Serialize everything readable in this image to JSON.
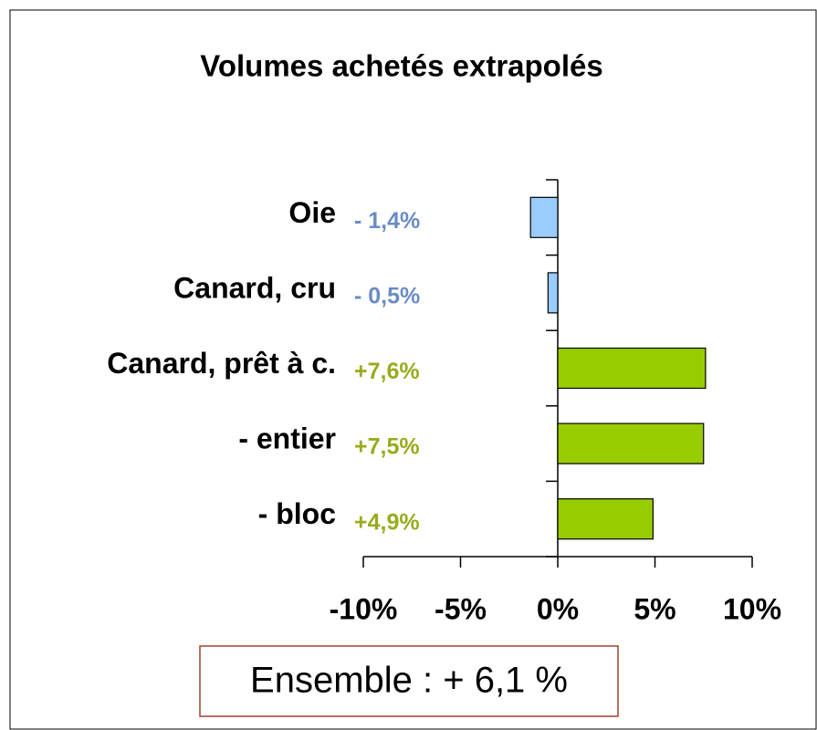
{
  "chart_data": {
    "type": "barh",
    "title": "Volumes achetés extrapolés",
    "categories": [
      "Oie",
      "Canard, cru",
      "Canard, prêt à c.",
      "- entier",
      "- bloc"
    ],
    "values": [
      -1.4,
      -0.5,
      7.6,
      7.5,
      4.9
    ],
    "value_labels": [
      "- 1,4%",
      "- 0,5%",
      "+7,6%",
      "+7,5%",
      "+4,9%"
    ],
    "colors": [
      "#99ccff",
      "#99ccff",
      "#99cc00",
      "#99cc00",
      "#99cc00"
    ],
    "label_colors": [
      "#6a8cc4",
      "#6a8cc4",
      "#9aaa1e",
      "#9aaa1e",
      "#9aaa1e"
    ],
    "xlim": [
      -10,
      10
    ],
    "xticks": [
      {
        "value": -10,
        "label": "-10%"
      },
      {
        "value": -5,
        "label": "-5%"
      },
      {
        "value": 0,
        "label": "0%"
      },
      {
        "value": 5,
        "label": "5%"
      },
      {
        "value": 10,
        "label": "10%"
      }
    ],
    "annotation": "Ensemble : + 6,1 %",
    "annotation_color": "#a0412d"
  }
}
